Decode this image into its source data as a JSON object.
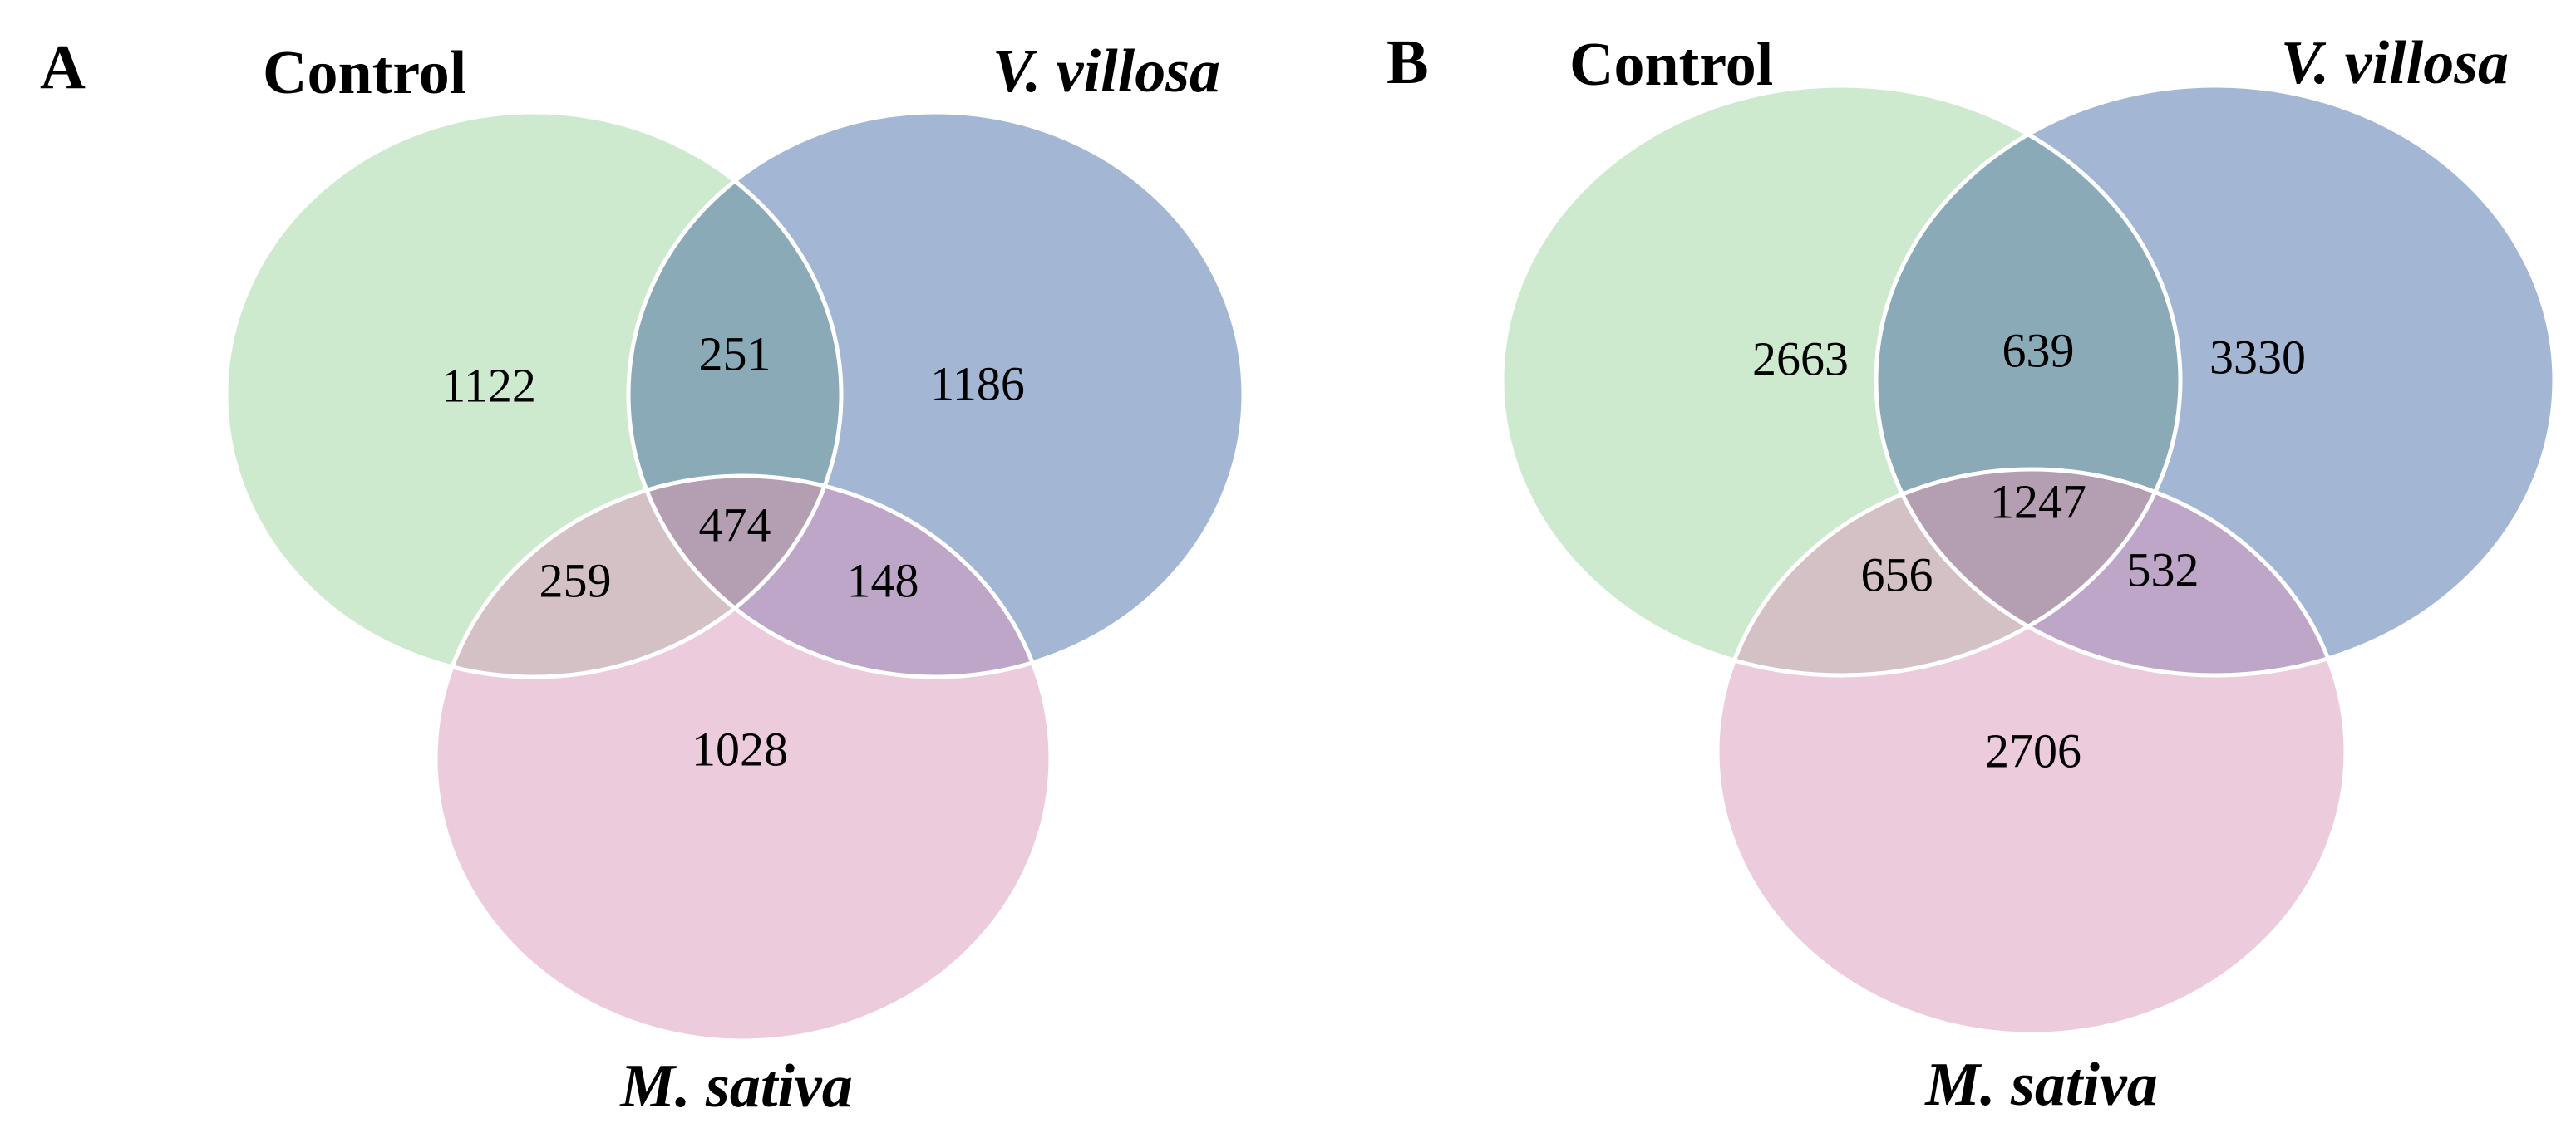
{
  "colors": {
    "control": "#cde9ce",
    "villosa": "#a3b7d5",
    "sativa": "#ecccdc",
    "control_villosa": "#8aaab7",
    "control_sativa": "#d3c1c5",
    "villosa_sativa": "#bea6c8",
    "all_three": "#b49fb2"
  },
  "panels": [
    {
      "letter": "A",
      "labels": {
        "control": "Control",
        "villosa": "V. villosa",
        "sativa": "M. sativa"
      },
      "counts": {
        "control_only": "1122",
        "villosa_only": "1186",
        "sativa_only": "1028",
        "control_villosa": "251",
        "control_sativa": "259",
        "villosa_sativa": "148",
        "all_three": "474"
      }
    },
    {
      "letter": "B",
      "labels": {
        "control": "Control",
        "villosa": "V. villosa",
        "sativa": "M. sativa"
      },
      "counts": {
        "control_only": "2663",
        "villosa_only": "3330",
        "sativa_only": "2706",
        "control_villosa": "639",
        "control_sativa": "656",
        "villosa_sativa": "532",
        "all_three": "1247"
      }
    }
  ]
}
